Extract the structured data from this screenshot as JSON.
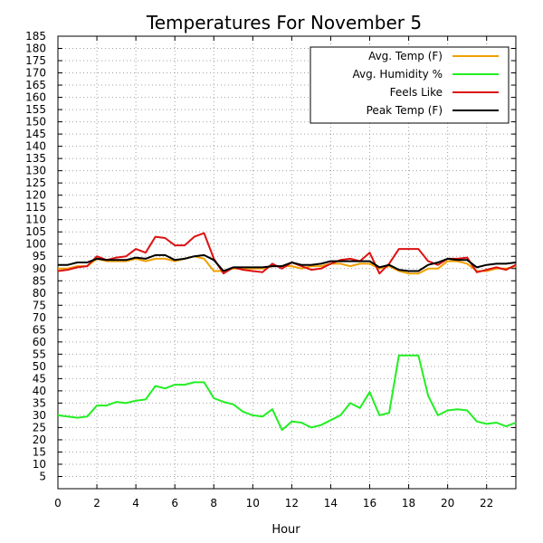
{
  "chart_data": {
    "type": "line",
    "title": "Temperatures For November 5",
    "xlabel": "Hour",
    "ylabel": "",
    "xlim": [
      0,
      23.5
    ],
    "ylim": [
      0,
      185
    ],
    "x_ticks": [
      0,
      2,
      4,
      6,
      8,
      10,
      12,
      14,
      16,
      18,
      20,
      22
    ],
    "y_ticks": [
      5,
      10,
      15,
      20,
      25,
      30,
      35,
      40,
      45,
      50,
      55,
      60,
      65,
      70,
      75,
      80,
      85,
      90,
      95,
      100,
      105,
      110,
      115,
      120,
      125,
      130,
      135,
      140,
      145,
      150,
      155,
      160,
      165,
      170,
      175,
      180,
      185
    ],
    "grid": true,
    "legend_position": "top-right",
    "x": [
      0,
      0.5,
      1,
      1.5,
      2,
      2.5,
      3,
      3.5,
      4,
      4.5,
      5,
      5.5,
      6,
      6.5,
      7,
      7.5,
      8,
      8.5,
      9,
      9.5,
      10,
      10.5,
      11,
      11.5,
      12,
      12.5,
      13,
      13.5,
      14,
      14.5,
      15,
      15.5,
      16,
      16.5,
      17,
      17.5,
      18,
      18.5,
      19,
      19.5,
      20,
      20.5,
      21,
      21.5,
      22,
      22.5,
      23,
      23.5
    ],
    "series": [
      {
        "name": "Avg. Temp (F)",
        "color": "#f0a000",
        "values": [
          90,
          90,
          91,
          91,
          94,
          93,
          93,
          93,
          94,
          93,
          94,
          94,
          93,
          94,
          95,
          94,
          89,
          89,
          90,
          90,
          90,
          90,
          91,
          91,
          91,
          90,
          91,
          91,
          92,
          92,
          91,
          92,
          92,
          90,
          91,
          89,
          88,
          88,
          90,
          90,
          93,
          93,
          92,
          89,
          89,
          90,
          90,
          91
        ]
      },
      {
        "name": "Avg. Humidity %",
        "color": "#22ee22",
        "values": [
          30,
          29.5,
          29,
          29.5,
          34,
          34,
          35.5,
          35,
          36,
          36.5,
          42,
          41,
          42.5,
          42.5,
          43.5,
          43.5,
          37,
          35.5,
          34.5,
          31.5,
          30,
          29.5,
          32.5,
          24,
          27.5,
          27,
          25,
          26,
          28,
          30,
          35,
          33,
          39.5,
          30,
          31,
          54.5,
          54.5,
          54.5,
          38,
          30,
          32,
          32.5,
          32,
          27.5,
          26.5,
          27,
          25.5,
          27
        ]
      },
      {
        "name": "Feels Like",
        "color": "#dd1111",
        "values": [
          89,
          89.5,
          90.5,
          91,
          95,
          93.5,
          94.5,
          95,
          98,
          96.5,
          103,
          102.5,
          99.5,
          99.5,
          103,
          104.5,
          94,
          88,
          90.5,
          89.5,
          89,
          88.5,
          92,
          90,
          92.5,
          91,
          89.5,
          90,
          92,
          93.5,
          94,
          93,
          96.5,
          88,
          92,
          98,
          98,
          98,
          93,
          91.5,
          94,
          94,
          94.5,
          88.5,
          89.5,
          90.5,
          89.5,
          91.5
        ]
      },
      {
        "name": "Peak Temp (F)",
        "color": "#000000",
        "values": [
          91.5,
          91.5,
          92.5,
          92.5,
          94,
          93.5,
          93.5,
          93.5,
          94.5,
          94,
          95.5,
          95.5,
          93.5,
          94,
          95,
          95.5,
          93.5,
          89,
          90.5,
          90.5,
          90.5,
          90.5,
          91,
          91,
          92.5,
          91.5,
          91.5,
          92,
          93,
          93,
          93,
          93,
          93,
          90.5,
          91.5,
          89.5,
          89,
          89,
          91.5,
          92.5,
          94,
          93.5,
          93.5,
          90.5,
          91.5,
          92,
          92,
          92.5
        ]
      }
    ]
  }
}
